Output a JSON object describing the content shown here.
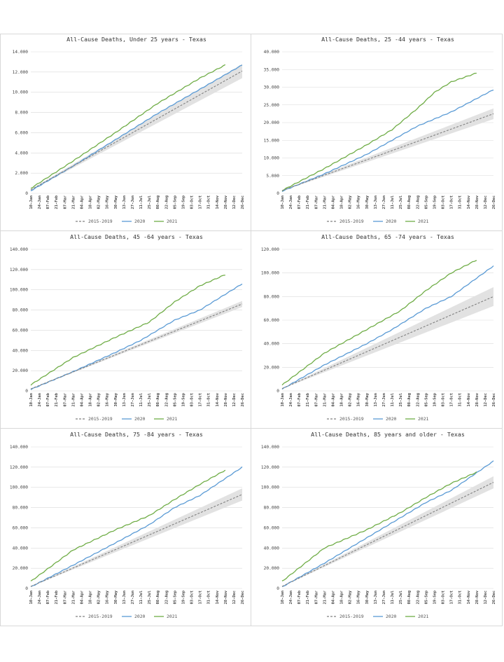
{
  "colors": {
    "baseline": "#808080",
    "band": "#e2e2e2",
    "y2020": "#5b9bd5",
    "y2021": "#70ad47",
    "grid": "#d9d9d9"
  },
  "legend": [
    "2015-2019",
    "2020",
    "2021"
  ],
  "x_ticks": [
    "10-Jan",
    "24-Jan",
    "07-Feb",
    "21-Feb",
    "07-Mar",
    "21-Mar",
    "04-Apr",
    "18-Apr",
    "02-May",
    "16-May",
    "30-May",
    "13-Jun",
    "27-Jun",
    "11-Jul",
    "25-Jul",
    "08-Aug",
    "22-Aug",
    "05-Sep",
    "19-Sep",
    "03-Oct",
    "17-Oct",
    "31-Oct",
    "14-Nov",
    "28-Nov",
    "12-Dec",
    "26-Dec"
  ],
  "chart_data": [
    {
      "type": "line",
      "title": "All-Cause Deaths, Under 25 years  - Texas",
      "y_ticks": [
        "0",
        "2.000",
        "4.000",
        "6.000",
        "8.000",
        "10.000",
        "12.000",
        "14.000"
      ],
      "ylim": [
        0,
        14000
      ],
      "grid": true,
      "legend": "bottom",
      "series": [
        {
          "name": "2015-2019",
          "x": [
            0,
            25
          ],
          "values": [
            350,
            12100
          ],
          "band": [
            [
              300,
              11400
            ],
            [
              400,
              12800
            ]
          ]
        },
        {
          "name": "2020",
          "x": [
            0,
            5,
            10,
            15,
            20,
            25
          ],
          "values": [
            250,
            2700,
            5300,
            7900,
            10300,
            12700
          ]
        },
        {
          "name": "2021",
          "x": [
            0,
            5,
            10,
            15,
            20,
            23
          ],
          "values": [
            500,
            3200,
            6000,
            8900,
            11400,
            12700
          ]
        }
      ]
    },
    {
      "type": "line",
      "title": "All-Cause Deaths, 25 -44 years  - Texas",
      "y_ticks": [
        "0",
        "5.000",
        "10.000",
        "15.000",
        "20.000",
        "25.000",
        "30.000",
        "35.000",
        "40.000"
      ],
      "ylim": [
        0,
        40000
      ],
      "grid": true,
      "legend": "bottom",
      "series": [
        {
          "name": "2015-2019",
          "x": [
            0,
            25
          ],
          "values": [
            800,
            22500
          ],
          "band": [
            [
              700,
              21000
            ],
            [
              900,
              24000
            ]
          ]
        },
        {
          "name": "2020",
          "x": [
            0,
            5,
            10,
            13,
            16,
            20,
            25
          ],
          "values": [
            600,
            5500,
            11000,
            15000,
            19000,
            23000,
            29300
          ]
        },
        {
          "name": "2021",
          "x": [
            0,
            5,
            10,
            13,
            16,
            18,
            20,
            23
          ],
          "values": [
            800,
            7000,
            13700,
            18000,
            24000,
            28500,
            31500,
            34000
          ]
        }
      ]
    },
    {
      "type": "line",
      "title": "All-Cause Deaths, 45 -64 years  - Texas",
      "y_ticks": [
        "0",
        "20.000",
        "40.000",
        "60.000",
        "80.000",
        "100.000",
        "120.000",
        "140.000"
      ],
      "ylim": [
        0,
        140000
      ],
      "grid": true,
      "legend": "bottom",
      "series": [
        {
          "name": "2015-2019",
          "x": [
            0,
            25
          ],
          "values": [
            2000,
            86000
          ],
          "band": [
            [
              1800,
              83000
            ],
            [
              2200,
              89000
            ]
          ]
        },
        {
          "name": "2020",
          "x": [
            0,
            5,
            10,
            13,
            17,
            20,
            25
          ],
          "values": [
            1500,
            19000,
            38000,
            50000,
            70000,
            80000,
            106000
          ]
        },
        {
          "name": "2021",
          "x": [
            0,
            5,
            10,
            14,
            17,
            20,
            23
          ],
          "values": [
            6000,
            33000,
            53000,
            68000,
            88000,
            104000,
            115000
          ]
        }
      ]
    },
    {
      "type": "line",
      "title": "All-Cause Deaths, 65 -74 years  - Texas",
      "y_ticks": [
        "0",
        "20.000",
        "40.000",
        "60.000",
        "80.000",
        "100.000",
        "120.000"
      ],
      "ylim": [
        0,
        120000
      ],
      "grid": true,
      "legend": "bottom",
      "series": [
        {
          "name": "2015-2019",
          "x": [
            0,
            25
          ],
          "values": [
            2000,
            80000
          ],
          "band": [
            [
              1800,
              72000
            ],
            [
              2200,
              88000
            ]
          ]
        },
        {
          "name": "2020",
          "x": [
            0,
            5,
            10,
            13,
            17,
            20,
            25
          ],
          "values": [
            1500,
            22000,
            40000,
            52000,
            70000,
            80000,
            106000
          ]
        },
        {
          "name": "2021",
          "x": [
            0,
            5,
            10,
            14,
            17,
            20,
            23
          ],
          "values": [
            5000,
            32000,
            52000,
            68000,
            85000,
            100000,
            111000
          ]
        }
      ]
    },
    {
      "type": "line",
      "title": "All-Cause Deaths, 75 -84 years  - Texas",
      "y_ticks": [
        "0",
        "20.000",
        "40.000",
        "60.000",
        "80.000",
        "100.000",
        "120.000",
        "140.000"
      ],
      "ylim": [
        0,
        140000
      ],
      "grid": true,
      "legend": "bottom",
      "series": [
        {
          "name": "2015-2019",
          "x": [
            0,
            25
          ],
          "values": [
            2000,
            93000
          ],
          "band": [
            [
              1800,
              87000
            ],
            [
              2200,
              99000
            ]
          ]
        },
        {
          "name": "2020",
          "x": [
            0,
            5,
            10,
            14,
            17,
            20,
            25
          ],
          "values": [
            1500,
            23000,
            45000,
            63000,
            80000,
            92000,
            120000
          ]
        },
        {
          "name": "2021",
          "x": [
            0,
            5,
            10,
            14,
            17,
            20,
            23
          ],
          "values": [
            7000,
            38000,
            58000,
            72000,
            88000,
            103000,
            117000
          ]
        }
      ]
    },
    {
      "type": "line",
      "title": "All-Cause Deaths, 85 years and older  - Texas",
      "y_ticks": [
        "0",
        "20.000",
        "40.000",
        "60.000",
        "80.000",
        "100.000",
        "120.000",
        "140.000"
      ],
      "ylim": [
        0,
        140000
      ],
      "grid": true,
      "legend": "bottom",
      "series": [
        {
          "name": "2015-2019",
          "x": [
            0,
            25
          ],
          "values": [
            2000,
            105000
          ],
          "band": [
            [
              1800,
              99000
            ],
            [
              2200,
              111000
            ]
          ]
        },
        {
          "name": "2020",
          "x": [
            0,
            5,
            10,
            14,
            17,
            20,
            25
          ],
          "values": [
            1500,
            25000,
            50000,
            70000,
            85000,
            97000,
            126000
          ]
        },
        {
          "name": "2021",
          "x": [
            0,
            5,
            10,
            14,
            17,
            20,
            23
          ],
          "values": [
            7000,
            40000,
            58000,
            75000,
            90000,
            104000,
            115000
          ]
        }
      ]
    }
  ]
}
